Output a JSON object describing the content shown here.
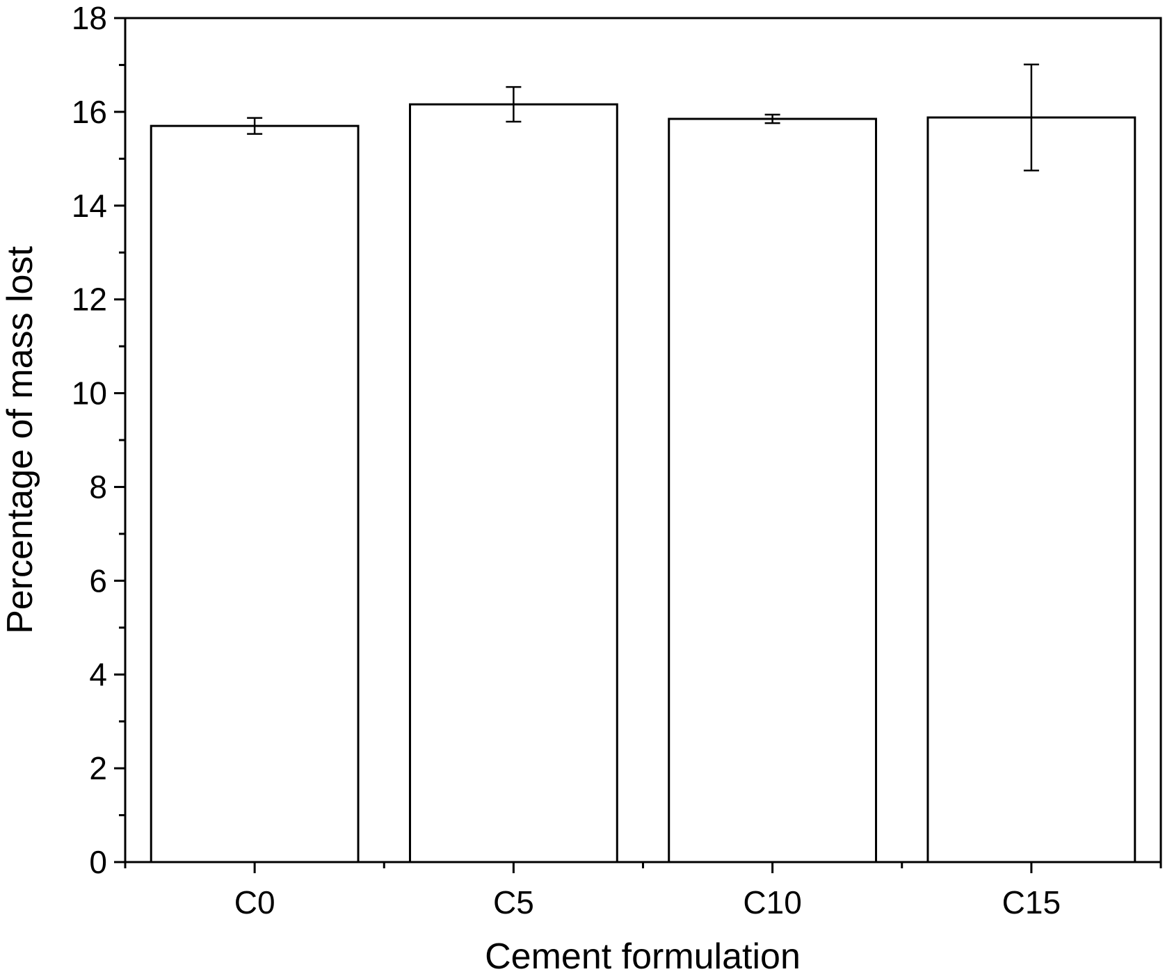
{
  "chart_data": {
    "type": "bar",
    "categories": [
      "C0",
      "C5",
      "C10",
      "C15"
    ],
    "values": [
      15.7,
      16.16,
      15.85,
      15.88
    ],
    "errors": [
      0.17,
      0.37,
      0.09,
      1.13
    ],
    "title": "",
    "xlabel": "Cement formulation",
    "ylabel": "Percentage of mass lost",
    "ylim": [
      0,
      18
    ],
    "yticks": [
      0,
      2,
      4,
      6,
      8,
      10,
      12,
      14,
      16,
      18
    ],
    "grid": false,
    "bar_color": "#ffffff",
    "edge_color": "#000000"
  }
}
